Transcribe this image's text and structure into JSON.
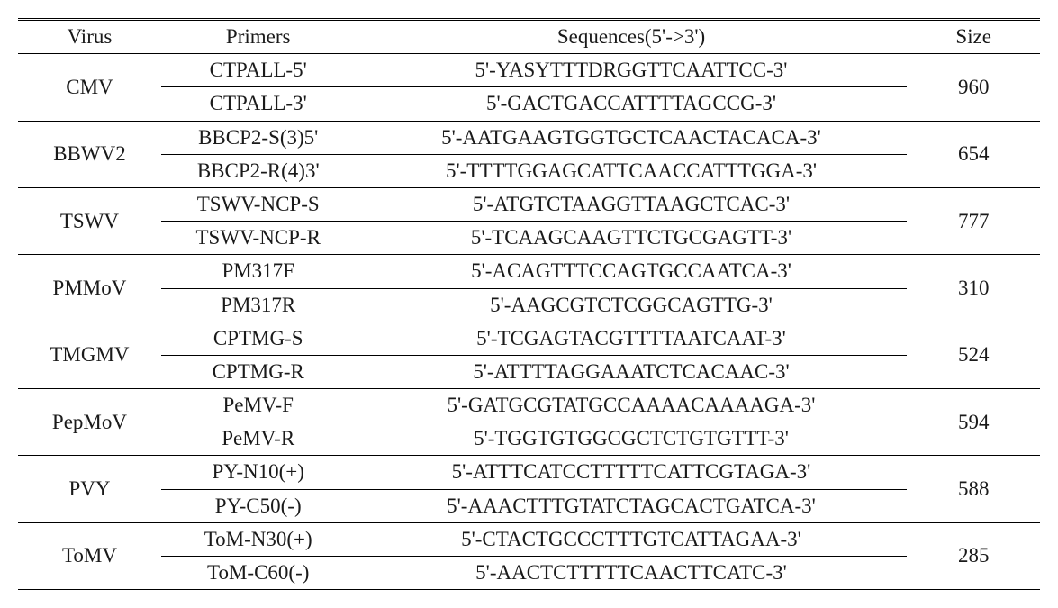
{
  "table": {
    "background_color": "#ffffff",
    "text_color": "#1a1a1a",
    "font_family": "Palatino Linotype, Book Antiqua, Palatino, Georgia, serif",
    "font_size_pt": 17,
    "col_widths_pct": [
      14,
      19,
      54,
      13
    ],
    "rule_colors": {
      "line": "#000000"
    },
    "headers": [
      "Virus",
      "Primers",
      "Sequences(5'->3')",
      "Size"
    ],
    "rows": [
      {
        "virus": "CMV",
        "size": "960",
        "primers": [
          "CTPALL-5'",
          "CTPALL-3'"
        ],
        "sequences": [
          "5'-YASYTTTDRGGTTCAATTCC-3'",
          "5'-GACTGACCATTTTAGCCG-3'"
        ]
      },
      {
        "virus": "BBWV2",
        "size": "654",
        "primers": [
          "BBCP2-S(3)5'",
          "BBCP2-R(4)3'"
        ],
        "sequences": [
          "5'-AATGAAGTGGTGCTCAACTACACA-3'",
          "5'-TTTTGGAGCATTCAACCATTTGGA-3'"
        ]
      },
      {
        "virus": "TSWV",
        "size": "777",
        "primers": [
          "TSWV-NCP-S",
          "TSWV-NCP-R"
        ],
        "sequences": [
          "5'-ATGTCTAAGGTTAAGCTCAC-3'",
          "5'-TCAAGCAAGTTCTGCGAGTT-3'"
        ]
      },
      {
        "virus": "PMMoV",
        "size": "310",
        "primers": [
          "PM317F",
          "PM317R"
        ],
        "sequences": [
          "5'-ACAGTTTCCAGTGCCAATCA-3'",
          "5'-AAGCGTCTCGGCAGTTG-3'"
        ]
      },
      {
        "virus": "TMGMV",
        "size": "524",
        "primers": [
          "CPTMG-S",
          "CPTMG-R"
        ],
        "sequences": [
          "5'-TCGAGTACGTTTTAATCAAT-3'",
          "5'-ATTTTAGGAAATCTCACAAC-3'"
        ]
      },
      {
        "virus": "PepMoV",
        "size": "594",
        "primers": [
          "PeMV-F",
          "PeMV-R"
        ],
        "sequences": [
          "5'-GATGCGTATGCCAAAACAAAAGA-3'",
          "5'-TGGTGTGGCGCTCTGTGTTT-3'"
        ]
      },
      {
        "virus": "PVY",
        "size": "588",
        "primers": [
          "PY-N10(+)",
          "PY-C50(-)"
        ],
        "sequences": [
          "5'-ATTTCATCCTTTTTCATTCGTAGA-3'",
          "5'-AAACTTTGTATCTAGCACTGATCA-3'"
        ]
      },
      {
        "virus": "ToMV",
        "size": "285",
        "primers": [
          "ToM-N30(+)",
          "ToM-C60(-)"
        ],
        "sequences": [
          "5'-CTACTGCCCTTTGTCATTAGAA-3'",
          "5'-AACTCTTTTTCAACTTCATC-3'"
        ]
      }
    ]
  }
}
